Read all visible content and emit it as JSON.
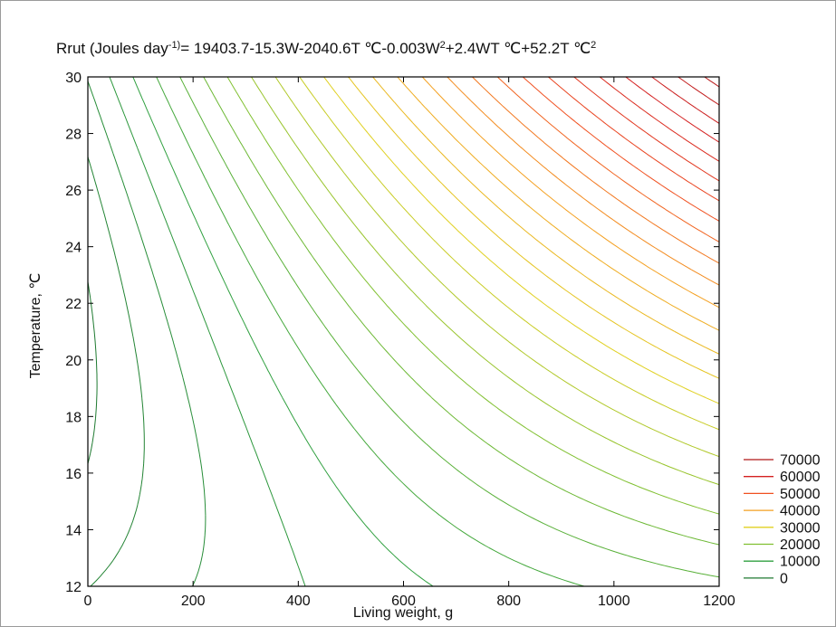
{
  "chart_data": {
    "type": "contour",
    "title": {
      "prefix": "Rrut (Joules day",
      "sup1": "-1)",
      "middle": "= 19403.7-15.3W-2040.6T ℃-0.003W",
      "sup2": "2",
      "middle2": "+2.4WT ℃+52.2T ℃",
      "sup3": "2"
    },
    "formula": {
      "c0": 19403.7,
      "cW": -15.3,
      "cT": -2040.6,
      "cWW": -0.003,
      "cWT": 2.4,
      "cTT": 52.2
    },
    "xlabel": "Living weight,  g",
    "ylabel": "Temperature,  ℃",
    "xlim": [
      0,
      1200
    ],
    "ylim": [
      12,
      30
    ],
    "x_ticks": [
      "0",
      "200",
      "400",
      "600",
      "800",
      "1000",
      "1200"
    ],
    "y_ticks": [
      "12",
      "14",
      "16",
      "18",
      "20",
      "22",
      "24",
      "26",
      "28",
      "30"
    ],
    "contour_start": 0,
    "contour_step": 2500,
    "contour_end": 82500,
    "legend": {
      "position": "bottom-right",
      "entries": [
        {
          "label": "70000",
          "level": 70000,
          "color": "#b01818"
        },
        {
          "label": "60000",
          "level": 60000,
          "color": "#d42020"
        },
        {
          "label": "50000",
          "level": 50000,
          "color": "#f05020"
        },
        {
          "label": "40000",
          "level": 40000,
          "color": "#f4a020"
        },
        {
          "label": "30000",
          "level": 30000,
          "color": "#e0d020"
        },
        {
          "label": "20000",
          "level": 20000,
          "color": "#80c030"
        },
        {
          "label": "10000",
          "level": 10000,
          "color": "#30a040"
        },
        {
          "label": "0",
          "level": 0,
          "color": "#1e7a30"
        }
      ]
    },
    "grid": false
  }
}
